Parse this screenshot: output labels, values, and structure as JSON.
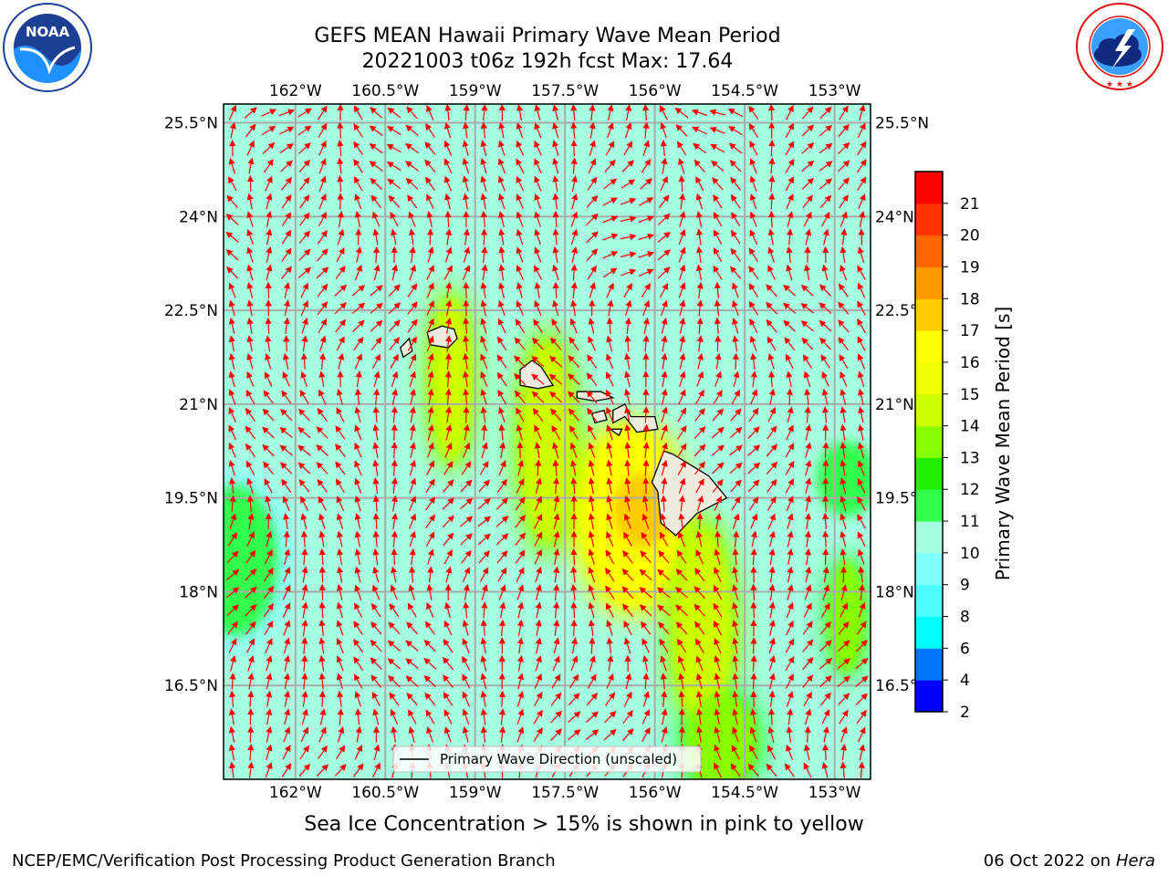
{
  "header": {
    "title_line1": "GEFS MEAN Hawaii Primary Wave Mean Period",
    "title_line2": "20221003 t06z 192h fcst   Max: 17.64"
  },
  "logos": {
    "left": {
      "text": "NOAA",
      "ring_text": "NATIONAL OCEANIC AND ATMOSPHERIC ADMINISTRATION · U.S. DEPARTMENT OF COMMERCE"
    },
    "right": {
      "ring_text": "NATIONAL WEATHER SERVICE"
    }
  },
  "chart_data": {
    "type": "heatmap",
    "title": "GEFS MEAN Hawaii Primary Wave Mean Period",
    "subtitle": "20221003 t06z 192h fcst   Max: 17.64",
    "xlim": [
      -163.2,
      -152.4
    ],
    "ylim": [
      15.0,
      25.8
    ],
    "x_ticks": [
      "162°W",
      "160.5°W",
      "159°W",
      "157.5°W",
      "156°W",
      "154.5°W",
      "153°W"
    ],
    "x_tick_values": [
      -162,
      -160.5,
      -159,
      -157.5,
      -156,
      -154.5,
      -153
    ],
    "y_ticks": [
      "25.5°N",
      "24°N",
      "22.5°N",
      "21°N",
      "19.5°N",
      "18°N",
      "16.5°N"
    ],
    "y_tick_values": [
      25.5,
      24,
      22.5,
      21,
      19.5,
      18,
      16.5
    ],
    "grid": true,
    "background_value": 10.8,
    "max_value": 17.64,
    "period_regions": [
      {
        "lon": -159.4,
        "lat": 21.4,
        "rx": 0.35,
        "ry": 1.3,
        "value": 14.5
      },
      {
        "lon": -157.8,
        "lat": 20.4,
        "rx": 0.45,
        "ry": 1.6,
        "value": 14.8
      },
      {
        "lon": -156.4,
        "lat": 19.2,
        "rx": 0.8,
        "ry": 1.4,
        "value": 16.5
      },
      {
        "lon": -156.2,
        "lat": 19.3,
        "rx": 0.5,
        "ry": 0.6,
        "value": 17.6
      },
      {
        "lon": -155.2,
        "lat": 17.4,
        "rx": 0.5,
        "ry": 1.6,
        "value": 14.5
      },
      {
        "lon": -154.9,
        "lat": 15.6,
        "rx": 0.6,
        "ry": 0.8,
        "value": 13.0
      },
      {
        "lon": -152.8,
        "lat": 17.6,
        "rx": 0.3,
        "ry": 0.9,
        "value": 13.0
      },
      {
        "lon": -152.8,
        "lat": 19.8,
        "rx": 0.5,
        "ry": 0.6,
        "value": 11.5
      },
      {
        "lon": -163.0,
        "lat": 18.5,
        "rx": 0.7,
        "ry": 1.2,
        "value": 11.3
      }
    ],
    "islands": [
      {
        "name": "Niihau",
        "points": [
          [
            -160.25,
            21.9
          ],
          [
            -160.1,
            22.05
          ],
          [
            -160.05,
            21.85
          ],
          [
            -160.2,
            21.75
          ]
        ]
      },
      {
        "name": "Kauai",
        "points": [
          [
            -159.8,
            22.15
          ],
          [
            -159.55,
            22.25
          ],
          [
            -159.35,
            22.2
          ],
          [
            -159.3,
            22.05
          ],
          [
            -159.45,
            21.9
          ],
          [
            -159.75,
            21.95
          ]
        ]
      },
      {
        "name": "Oahu",
        "points": [
          [
            -158.25,
            21.55
          ],
          [
            -158.05,
            21.7
          ],
          [
            -157.9,
            21.6
          ],
          [
            -157.7,
            21.3
          ],
          [
            -157.95,
            21.25
          ],
          [
            -158.25,
            21.3
          ]
        ]
      },
      {
        "name": "Molokai",
        "points": [
          [
            -157.3,
            21.2
          ],
          [
            -156.9,
            21.2
          ],
          [
            -156.7,
            21.1
          ],
          [
            -157.0,
            21.05
          ],
          [
            -157.3,
            21.1
          ]
        ]
      },
      {
        "name": "Lanai",
        "points": [
          [
            -157.05,
            20.85
          ],
          [
            -156.85,
            20.9
          ],
          [
            -156.8,
            20.75
          ],
          [
            -157.0,
            20.7
          ]
        ]
      },
      {
        "name": "Maui",
        "points": [
          [
            -156.7,
            20.9
          ],
          [
            -156.5,
            21.0
          ],
          [
            -156.4,
            20.8
          ],
          [
            -156.0,
            20.8
          ],
          [
            -155.95,
            20.6
          ],
          [
            -156.3,
            20.55
          ],
          [
            -156.5,
            20.8
          ],
          [
            -156.7,
            20.7
          ]
        ]
      },
      {
        "name": "Kahoolawe",
        "points": [
          [
            -156.75,
            20.6
          ],
          [
            -156.55,
            20.6
          ],
          [
            -156.6,
            20.5
          ]
        ]
      },
      {
        "name": "Hawaii",
        "points": [
          [
            -155.85,
            20.25
          ],
          [
            -155.7,
            20.2
          ],
          [
            -155.1,
            19.85
          ],
          [
            -154.8,
            19.5
          ],
          [
            -155.3,
            19.25
          ],
          [
            -155.65,
            18.9
          ],
          [
            -155.9,
            19.1
          ],
          [
            -155.95,
            19.6
          ],
          [
            -156.05,
            19.75
          ]
        ]
      }
    ],
    "arrow_rows": 38,
    "arrow_cols": 36,
    "arrow_color": "#ff0000",
    "legend": {
      "position": "bottom-center",
      "entry": "Primary Wave Direction (unscaled)"
    },
    "colorbar": {
      "label": "Primary Wave Mean Period [s]",
      "ticks": [
        2,
        4,
        6,
        8,
        9,
        10,
        11,
        12,
        13,
        14,
        15,
        16,
        17,
        18,
        19,
        20,
        21
      ],
      "colors": [
        "#0000ff",
        "#0077ff",
        "#00ffff",
        "#4dffff",
        "#80ffff",
        "#a6ffe1",
        "#33ff4d",
        "#22ee00",
        "#88ff00",
        "#ccff00",
        "#eeff00",
        "#ffff00",
        "#ffcc00",
        "#ff9900",
        "#ff6600",
        "#ff3300",
        "#ff0000"
      ]
    }
  },
  "caption": "Sea Ice Concentration > 15% is shown in pink to yellow",
  "footer": {
    "left": "NCEP/EMC/Verification Post Processing Product Generation Branch",
    "right_prefix": "06 Oct 2022 on ",
    "right_italic": "Hera"
  }
}
